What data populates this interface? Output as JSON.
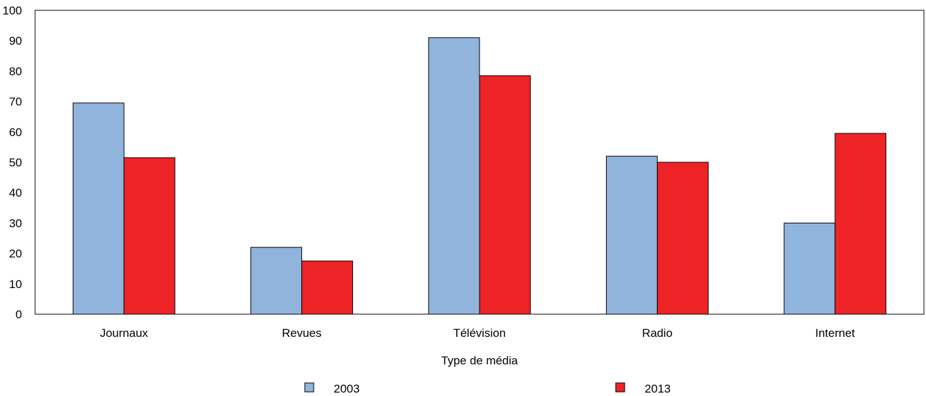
{
  "chart_data": {
    "type": "bar",
    "title": "",
    "xlabel": "Type de média",
    "ylabel": "",
    "ylim": [
      0,
      100
    ],
    "yticks": [
      0,
      10,
      20,
      30,
      40,
      50,
      60,
      70,
      80,
      90,
      100
    ],
    "categories": [
      "Journaux",
      "Revues",
      "Télévision",
      "Radio",
      "Internet"
    ],
    "series": [
      {
        "name": "2003",
        "color": "#91b4dc",
        "values": [
          69.5,
          22,
          91,
          52,
          30
        ]
      },
      {
        "name": "2013",
        "color": "#ee2326",
        "values": [
          51.5,
          17.5,
          78.5,
          50,
          59.5
        ]
      }
    ],
    "grid": false,
    "legend_position": "bottom"
  }
}
